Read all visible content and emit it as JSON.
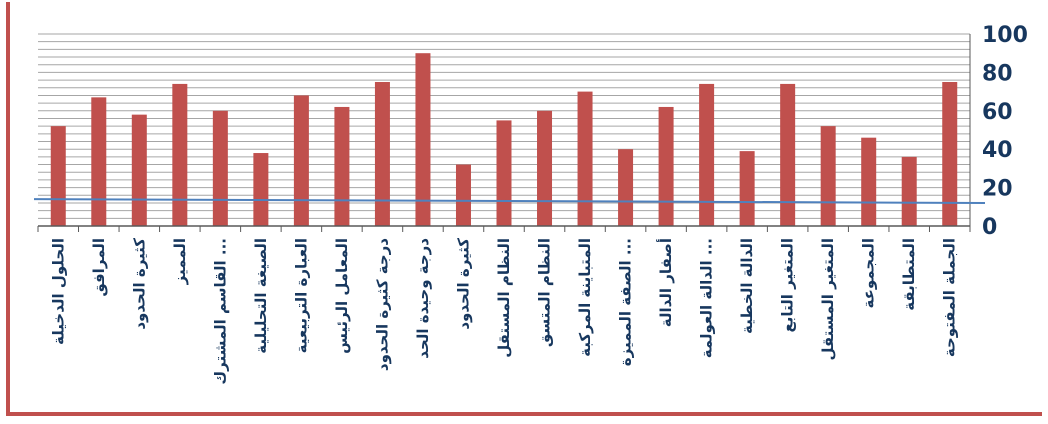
{
  "chart_data": {
    "type": "bar",
    "categories": [
      "الحلول الدخيلة",
      "المرافق",
      "كثيرة الحدود",
      "المميز",
      "القاسم المشترك ...",
      "الصيغة التحليلية",
      "العبارة التربيعية",
      "المعامل الرئيس",
      "درجة كثيرة الحدود",
      "درجة وحيدة الحد",
      "كثيرة الحدود",
      "النظام المستقل",
      "النظام المتسق",
      "المتباينة المركبة",
      "الصفة المميزة ...",
      "أصفار الدالة",
      "الدالة العولمة ...",
      "الدالة الخطية",
      "المتغير التابع",
      "المتغير المستقل",
      "المجموعة",
      "المتطابقة",
      "الجملة المفتوحة"
    ],
    "series": [
      {
        "values": [
          52,
          67,
          58,
          74,
          60,
          38,
          68,
          62,
          75,
          90,
          32,
          55,
          60,
          70,
          40,
          62,
          74,
          39,
          74,
          52,
          46,
          36,
          75
        ]
      }
    ],
    "reference_line": {
      "start": 14,
      "end": 12
    },
    "ylim": [
      0,
      100
    ],
    "yticks": [
      "0",
      "20",
      "40",
      "60",
      "80",
      "100"
    ],
    "y_axis_position": "right",
    "grid": true,
    "colors": {
      "bar": "#c0504d",
      "line": "#4f81bd",
      "tick_text": "#17375e",
      "frame": "#c0504d"
    }
  }
}
